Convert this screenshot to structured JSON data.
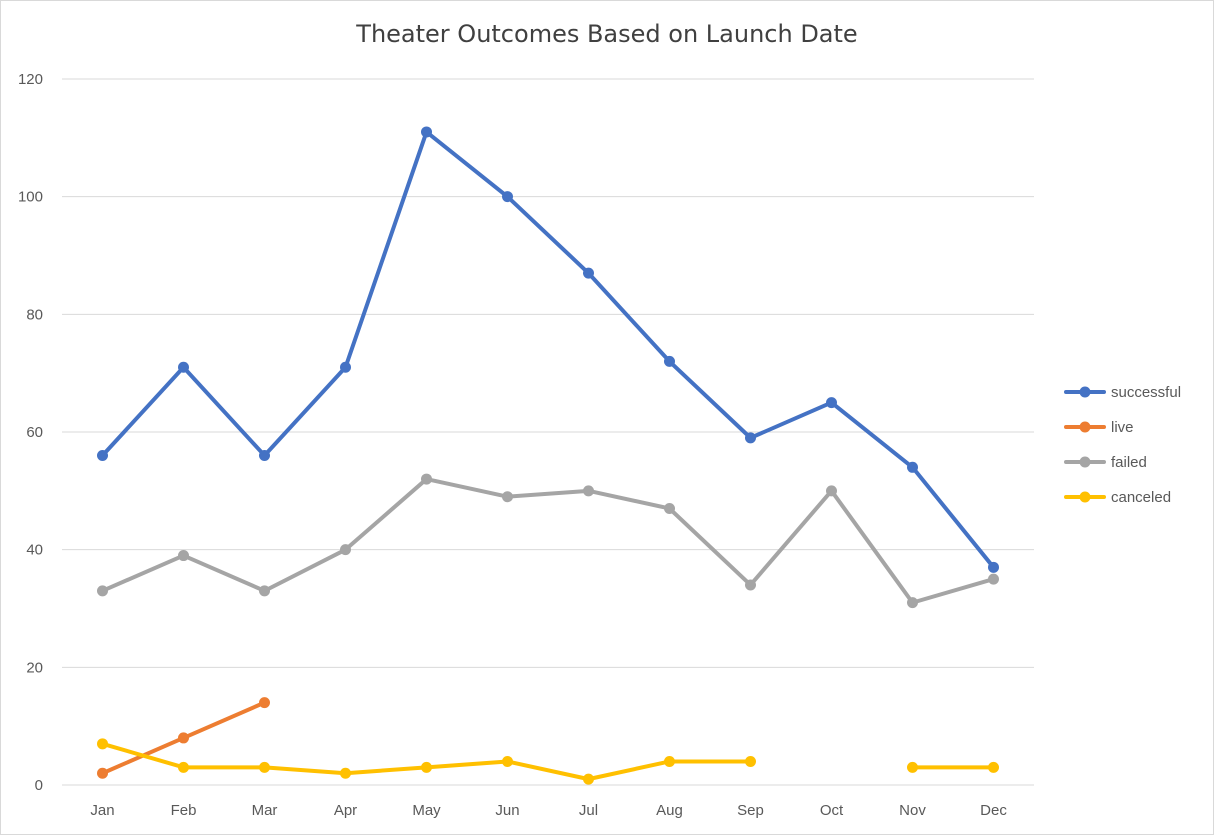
{
  "chart_data": {
    "type": "line",
    "title": "Theater Outcomes Based on Launch Date",
    "xlabel": "",
    "ylabel": "",
    "categories": [
      "Jan",
      "Feb",
      "Mar",
      "Apr",
      "May",
      "Jun",
      "Jul",
      "Aug",
      "Sep",
      "Oct",
      "Nov",
      "Dec"
    ],
    "ylim": [
      0,
      120
    ],
    "yticks": [
      0,
      20,
      40,
      60,
      80,
      100,
      120
    ],
    "grid": true,
    "legend_position": "right",
    "series": [
      {
        "name": "successful",
        "color": "#4472c4",
        "values": [
          56,
          71,
          56,
          71,
          111,
          100,
          87,
          72,
          59,
          65,
          54,
          37
        ]
      },
      {
        "name": "live",
        "color": "#ed7d31",
        "values": [
          2,
          8,
          14,
          null,
          null,
          null,
          null,
          null,
          null,
          null,
          null,
          null
        ]
      },
      {
        "name": "failed",
        "color": "#a5a5a5",
        "values": [
          33,
          39,
          33,
          40,
          52,
          49,
          50,
          47,
          34,
          50,
          31,
          35
        ]
      },
      {
        "name": "canceled",
        "color": "#ffc000",
        "values": [
          7,
          3,
          3,
          2,
          3,
          4,
          1,
          4,
          4,
          null,
          3,
          3
        ]
      }
    ]
  }
}
